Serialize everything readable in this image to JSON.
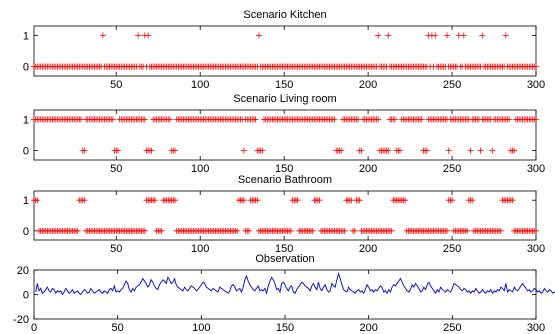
{
  "chart_data": [
    {
      "type": "scatter",
      "title": "Scenario Kitchen",
      "marker": "+",
      "color": "#ff0000",
      "xlim": [
        1,
        300
      ],
      "ylim": [
        -0.3,
        1.3
      ],
      "xticks": [
        50,
        100,
        150,
        200,
        250,
        300
      ],
      "yticks": [
        0,
        1
      ],
      "ones_at": [
        42,
        63,
        67,
        69,
        135,
        206,
        212,
        236,
        238,
        240,
        247,
        254,
        257,
        268,
        282
      ],
      "x_range": [
        1,
        300
      ],
      "y_default": 0
    },
    {
      "type": "scatter",
      "title": "Scenario Living room",
      "marker": "+",
      "color": "#ff0000",
      "xlim": [
        1,
        300
      ],
      "ylim": [
        -0.3,
        1.3
      ],
      "xticks": [
        50,
        100,
        150,
        200,
        250,
        300
      ],
      "yticks": [
        0,
        1
      ],
      "one_ranges": [
        [
          1,
          29
        ],
        [
          32,
          48
        ],
        [
          52,
          67
        ],
        [
          72,
          82
        ],
        [
          86,
          125
        ],
        [
          127,
          133
        ],
        [
          138,
          180
        ],
        [
          185,
          194
        ],
        [
          197,
          206
        ],
        [
          213,
          216
        ],
        [
          220,
          232
        ],
        [
          236,
          247
        ],
        [
          249,
          260
        ],
        [
          262,
          266
        ],
        [
          268,
          273
        ],
        [
          275,
          284
        ],
        [
          288,
          300
        ]
      ],
      "x_range": [
        1,
        300
      ],
      "y_default": 0
    },
    {
      "type": "scatter",
      "title": "Scenario Bathroom",
      "marker": "+",
      "color": "#ff0000",
      "xlim": [
        1,
        300
      ],
      "ylim": [
        -0.3,
        1.3
      ],
      "xticks": [
        50,
        100,
        150,
        200,
        250,
        300
      ],
      "yticks": [
        0,
        1
      ],
      "one_ranges": [
        [
          1,
          3
        ],
        [
          28,
          31
        ],
        [
          68,
          73
        ],
        [
          78,
          85
        ],
        [
          123,
          126
        ],
        [
          130,
          134
        ],
        [
          155,
          158
        ],
        [
          168,
          171
        ],
        [
          187,
          190
        ],
        [
          193,
          195
        ],
        [
          215,
          222
        ],
        [
          248,
          250
        ],
        [
          260,
          262
        ],
        [
          280,
          286
        ]
      ],
      "x_range": [
        1,
        300
      ],
      "y_default": 0
    },
    {
      "type": "line",
      "title": "Observation",
      "color": "#0000cc",
      "xlim": [
        0,
        300
      ],
      "ylim": [
        -20,
        20
      ],
      "xticks": [
        0,
        50,
        100,
        150,
        200,
        250,
        300
      ],
      "yticks": [
        -20,
        0,
        20
      ],
      "values": [
        2,
        9,
        3,
        5,
        1,
        2,
        4,
        6,
        3,
        2,
        5,
        4,
        1,
        3,
        2,
        3,
        0,
        2,
        5,
        3,
        1,
        2,
        4,
        1,
        2,
        3,
        1,
        0,
        2,
        4,
        3,
        1,
        2,
        5,
        3,
        1,
        2,
        3,
        4,
        2,
        1,
        3,
        2,
        1,
        4,
        5,
        3,
        7,
        2,
        3,
        2,
        4,
        5,
        8,
        11,
        9,
        4,
        2,
        5,
        3,
        6,
        7,
        8,
        10,
        13,
        11,
        9,
        6,
        8,
        12,
        10,
        7,
        5,
        4,
        8,
        10,
        12,
        11,
        9,
        14,
        12,
        9,
        10,
        13,
        8,
        6,
        5,
        4,
        3,
        6,
        4,
        3,
        5,
        7,
        6,
        5,
        3,
        4,
        6,
        8,
        10,
        9,
        6,
        5,
        4,
        3,
        5,
        4,
        3,
        2,
        6,
        5,
        4,
        3,
        2,
        1,
        3,
        7,
        8,
        6,
        3,
        4,
        5,
        2,
        6,
        12,
        15,
        11,
        8,
        6,
        4,
        3,
        5,
        7,
        3,
        4,
        3,
        5,
        1,
        7,
        11,
        14,
        12,
        9,
        4,
        5,
        2,
        9,
        10,
        8,
        5,
        3,
        6,
        7,
        2,
        1,
        4,
        6,
        8,
        10,
        9,
        7,
        6,
        5,
        3,
        7,
        9,
        6,
        4,
        10,
        5,
        3,
        6,
        8,
        4,
        2,
        3,
        9,
        7,
        6,
        12,
        17,
        13,
        8,
        4,
        3,
        2,
        6,
        4,
        3,
        2,
        1,
        3,
        4,
        2,
        3,
        1,
        4,
        8,
        6,
        3,
        4,
        2,
        4,
        3,
        5,
        7,
        6,
        2,
        3,
        1,
        4,
        2,
        6,
        8,
        7,
        9,
        11,
        13,
        10,
        7,
        5,
        3,
        2,
        4,
        8,
        6,
        9,
        7,
        5,
        2,
        3,
        6,
        4,
        8,
        10,
        7,
        5,
        3,
        1,
        4,
        2,
        6,
        4,
        3,
        2,
        4,
        3,
        2,
        5,
        9,
        8,
        7,
        6,
        4,
        3,
        5,
        4,
        2,
        3,
        1,
        3,
        2,
        5,
        3,
        1,
        2,
        4,
        2,
        1,
        3,
        2,
        4,
        1,
        3,
        2,
        4,
        3,
        6,
        5,
        3,
        9,
        2,
        4,
        3,
        2,
        6,
        4,
        3,
        5,
        7,
        9,
        7,
        5,
        3,
        4,
        2,
        3,
        5,
        4,
        2,
        3,
        1,
        2,
        5,
        3,
        2,
        4,
        3,
        1,
        2,
        1,
        0,
        2,
        3,
        4
      ],
      "value_note_none": ""
    }
  ]
}
